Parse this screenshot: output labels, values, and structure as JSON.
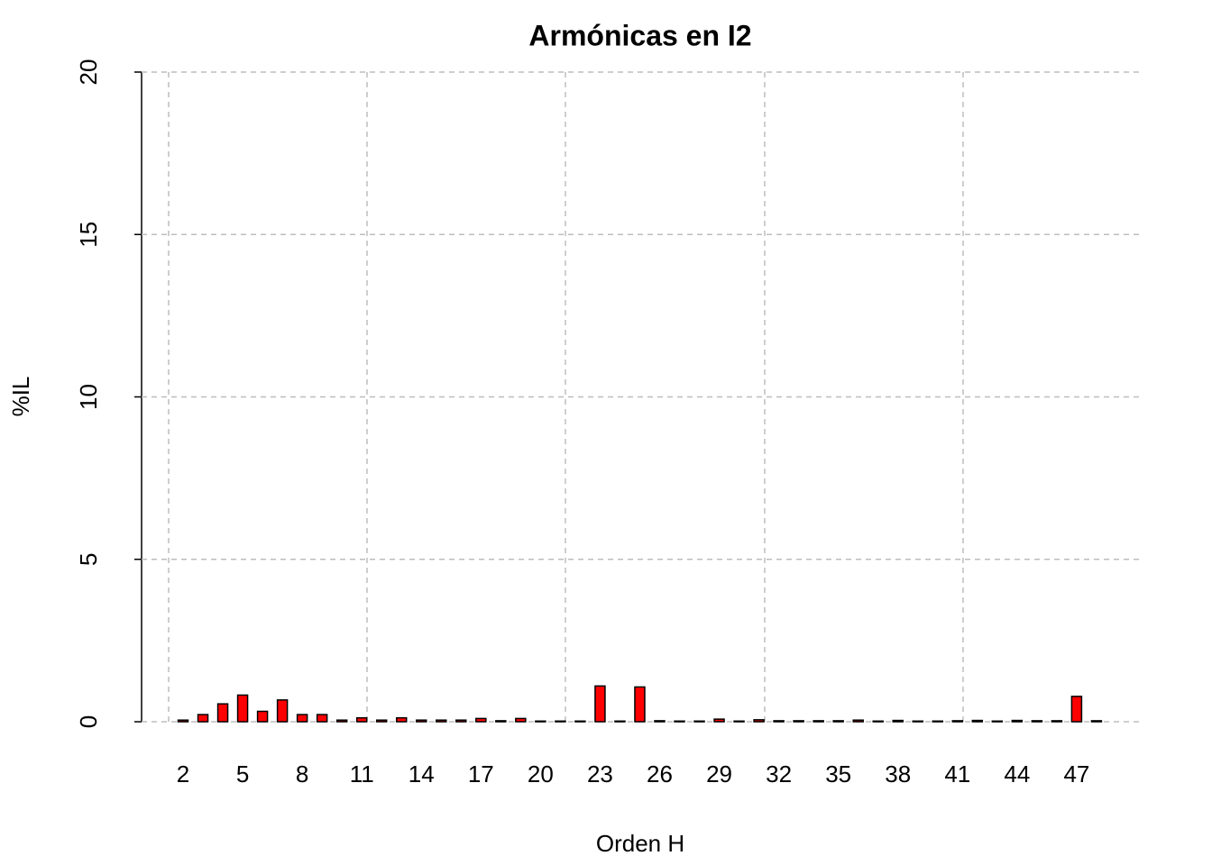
{
  "chart_data": {
    "type": "bar",
    "title": "Armónicas en I2",
    "x_label": "Orden H",
    "y_label": "%IL",
    "categories": [
      "2",
      null,
      null,
      "5",
      null,
      null,
      "8",
      null,
      null,
      "11",
      null,
      null,
      "14",
      null,
      null,
      "17",
      null,
      null,
      "20",
      null,
      null,
      "23",
      null,
      null,
      "26",
      null,
      null,
      "29",
      null,
      null,
      "32",
      null,
      null,
      "35",
      null,
      null,
      "38",
      null,
      null,
      "41",
      null,
      null,
      "44",
      null,
      null,
      "47",
      null
    ],
    "values": [
      0.05,
      0.22,
      0.55,
      0.82,
      0.32,
      0.67,
      0.22,
      0.22,
      0.05,
      0.12,
      0.05,
      0.12,
      0.05,
      0.05,
      0.05,
      0.1,
      0.03,
      0.1,
      0.02,
      0.02,
      0.02,
      1.1,
      0.02,
      1.07,
      0.03,
      0.02,
      0.02,
      0.08,
      0.02,
      0.06,
      0.03,
      0.03,
      0.03,
      0.03,
      0.05,
      0.02,
      0.04,
      0.02,
      0.02,
      0.03,
      0.04,
      0.02,
      0.04,
      0.03,
      0.03,
      0.78,
      0.03
    ],
    "color": "#ff0000",
    "ylim": [
      0,
      20
    ],
    "yticks": [
      0,
      5,
      10,
      15,
      20
    ],
    "grid": true
  }
}
